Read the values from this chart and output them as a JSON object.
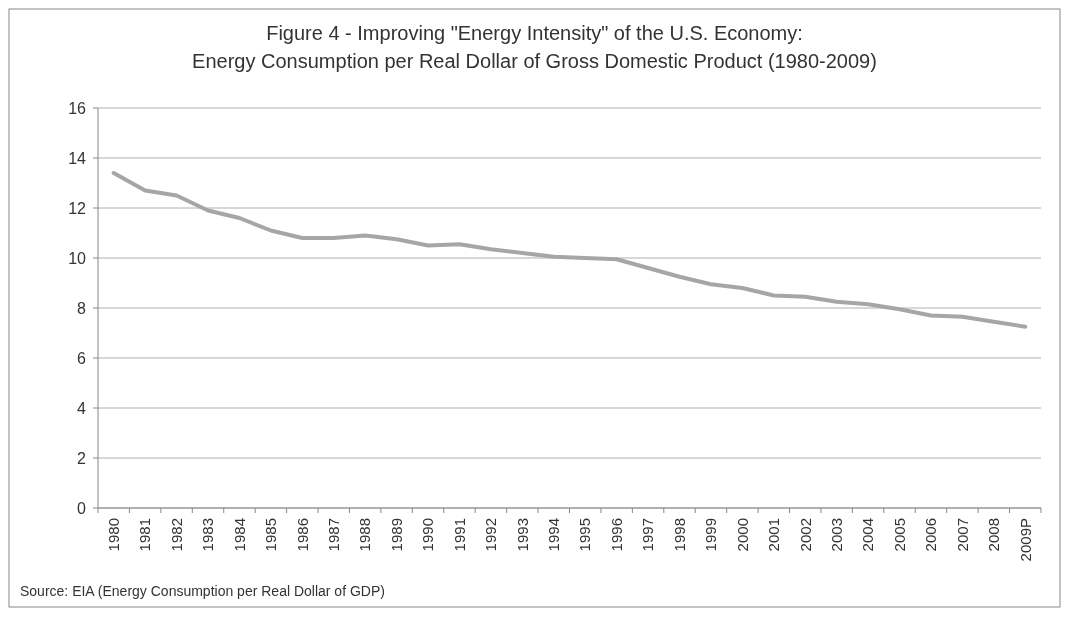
{
  "chart_data": {
    "type": "line",
    "title": "Figure 4 - Improving \"Energy Intensity\" of the U.S. Economy:\nEnergy Consumption per Real Dollar of Gross Domestic Product (1980-2009)",
    "categories": [
      "1980",
      "1981",
      "1982",
      "1983",
      "1984",
      "1985",
      "1986",
      "1987",
      "1988",
      "1989",
      "1990",
      "1991",
      "1992",
      "1993",
      "1994",
      "1995",
      "1996",
      "1997",
      "1998",
      "1999",
      "2000",
      "2001",
      "2002",
      "2003",
      "2004",
      "2005",
      "2006",
      "2007",
      "2008",
      "2009P"
    ],
    "series": [
      {
        "color": "#a6a6a6",
        "values": [
          13.4,
          12.7,
          12.5,
          11.9,
          11.6,
          11.1,
          10.8,
          10.8,
          10.9,
          10.75,
          10.5,
          10.55,
          10.35,
          10.2,
          10.05,
          10.0,
          9.95,
          9.6,
          9.25,
          8.95,
          8.8,
          8.5,
          8.45,
          8.25,
          8.15,
          7.95,
          7.7,
          7.65,
          7.45,
          7.25
        ]
      }
    ],
    "ylim": [
      0,
      16
    ],
    "yticks": [
      0,
      2,
      4,
      6,
      8,
      10,
      12,
      14,
      16
    ],
    "grid": "y",
    "marker": "none",
    "line_style": "solid",
    "annotations": [
      "Source:  EIA (Energy Consumption per Real Dollar of GDP)"
    ]
  }
}
